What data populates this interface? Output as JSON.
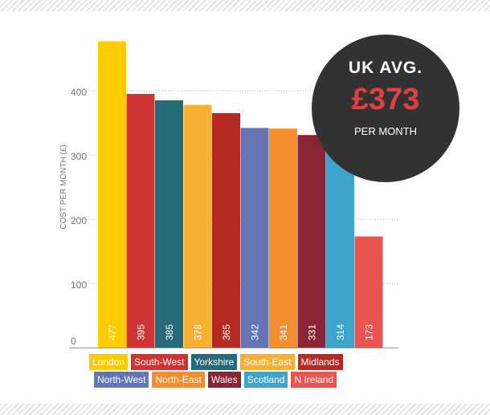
{
  "badge": {
    "title": "UK AVG.",
    "value": "£373",
    "subtitle": "PER MONTH"
  },
  "chart_data": {
    "type": "bar",
    "title": "",
    "xlabel": "",
    "ylabel": "COST PER MONTH (£)",
    "ylim": [
      0,
      500
    ],
    "yticks": [
      0,
      100,
      200,
      300,
      400
    ],
    "grid": true,
    "legend_position": "bottom",
    "categories": [
      "London",
      "South-West",
      "Yorkshire",
      "South-East",
      "Midlands",
      "North-West",
      "North-East",
      "Wales",
      "Scotland",
      "N Ireland"
    ],
    "values": [
      477,
      395,
      385,
      378,
      365,
      342,
      341,
      331,
      314,
      173
    ],
    "colors": [
      "#fccb00",
      "#cf3434",
      "#266a7a",
      "#f8b033",
      "#b52b23",
      "#6574b3",
      "#f48c30",
      "#8a2535",
      "#3ea4c9",
      "#e85550"
    ],
    "legend_rows": [
      [
        "London",
        "South-West",
        "Yorkshire",
        "South-East",
        "Midlands"
      ],
      [
        "North-West",
        "North-East",
        "Wales",
        "Scotland",
        "N Ireland"
      ]
    ]
  }
}
